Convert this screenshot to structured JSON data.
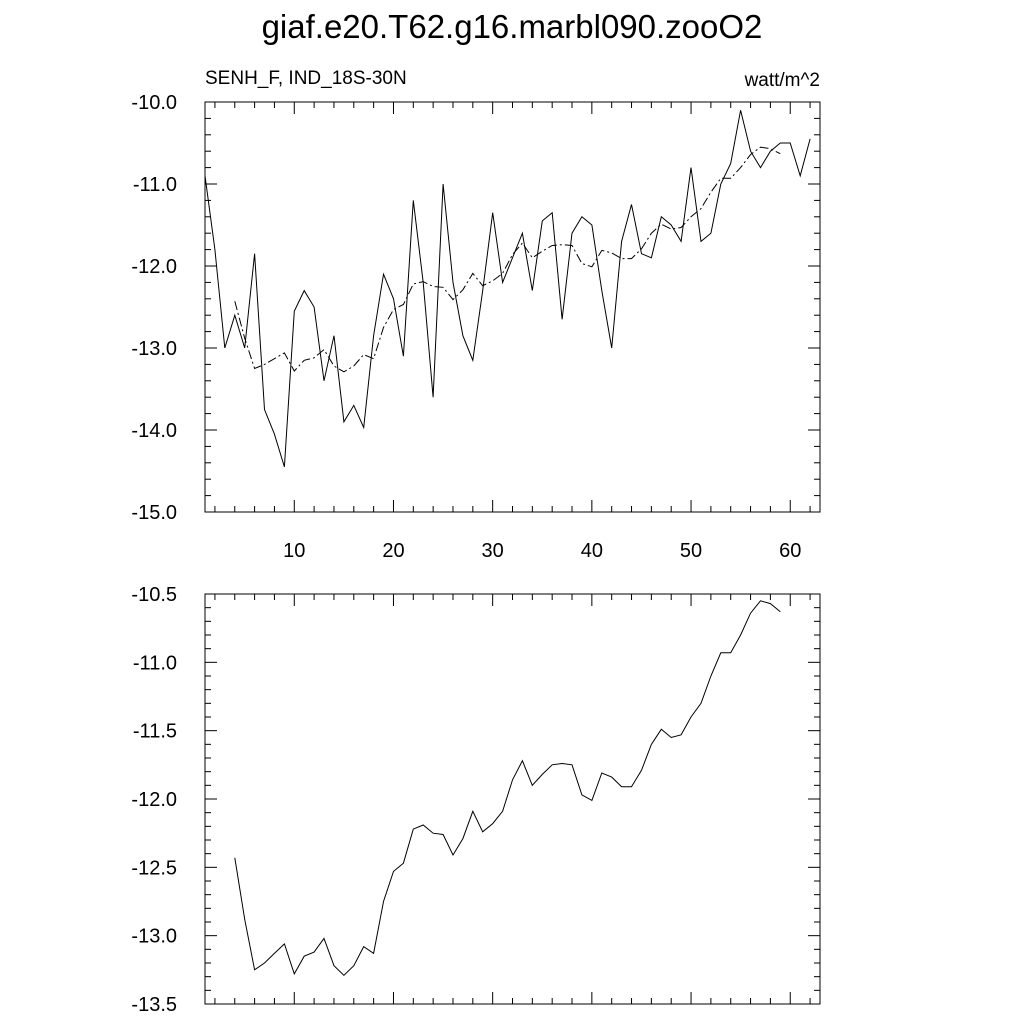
{
  "figure_title": "giaf.e20.T62.g16.marbl090.zooO2",
  "chart_data": [
    {
      "type": "line",
      "title": "giaf.e20.T62.g16.marbl090.zooO2",
      "left_label": "SENH_F, IND_18S-30N",
      "right_label": "watt/m^2",
      "xlim": [
        1,
        63
      ],
      "ylim": [
        -15.0,
        -10.0
      ],
      "x_ticks": [
        10,
        20,
        30,
        40,
        50,
        60
      ],
      "x_tick_labels": [
        "10",
        "20",
        "30",
        "40",
        "50",
        "60"
      ],
      "y_ticks": [
        -15.0,
        -14.0,
        -13.0,
        -12.0,
        -11.0,
        -10.0
      ],
      "y_tick_labels": [
        "-15.0",
        "-14.0",
        "-13.0",
        "-12.0",
        "-11.0",
        "-10.0"
      ],
      "grid": false,
      "series": [
        {
          "style": "solid",
          "x": [
            1,
            2,
            3,
            4,
            5,
            6,
            7,
            8,
            9,
            10,
            11,
            12,
            13,
            14,
            15,
            16,
            17,
            18,
            19,
            20,
            21,
            22,
            23,
            24,
            25,
            26,
            27,
            28,
            29,
            30,
            31,
            32,
            33,
            34,
            35,
            36,
            37,
            38,
            39,
            40,
            41,
            42,
            43,
            44,
            45,
            46,
            47,
            48,
            49,
            50,
            51,
            52,
            53,
            54,
            55,
            56,
            57,
            58,
            59,
            60,
            61,
            62
          ],
          "y": [
            -10.9,
            -11.8,
            -13.0,
            -12.6,
            -13.0,
            -11.85,
            -13.75,
            -14.05,
            -14.45,
            -12.55,
            -12.3,
            -12.5,
            -13.4,
            -12.85,
            -13.9,
            -13.7,
            -13.97,
            -12.85,
            -12.1,
            -12.4,
            -13.1,
            -11.2,
            -12.2,
            -13.6,
            -11.0,
            -12.2,
            -12.85,
            -13.15,
            -12.3,
            -11.35,
            -12.2,
            -11.9,
            -11.6,
            -12.3,
            -11.45,
            -11.35,
            -12.65,
            -11.6,
            -11.4,
            -11.5,
            -12.3,
            -13.0,
            -11.7,
            -11.25,
            -11.85,
            -11.9,
            -11.4,
            -11.5,
            -11.7,
            -10.8,
            -11.7,
            -11.6,
            -11.0,
            -10.75,
            -10.1,
            -10.6,
            -10.8,
            -10.6,
            -10.5,
            -10.5,
            -10.9,
            -10.45
          ]
        },
        {
          "style": "dash-dot",
          "x": [
            4,
            5,
            6,
            7,
            8,
            9,
            10,
            11,
            12,
            13,
            14,
            15,
            16,
            17,
            18,
            19,
            20,
            21,
            22,
            23,
            24,
            25,
            26,
            27,
            28,
            29,
            30,
            31,
            32,
            33,
            34,
            35,
            36,
            37,
            38,
            39,
            40,
            41,
            42,
            43,
            44,
            45,
            46,
            47,
            48,
            49,
            50,
            51,
            52,
            53,
            54,
            55,
            56,
            57,
            58,
            59
          ],
          "y": [
            -12.43,
            -12.88,
            -13.25,
            -13.2,
            -13.13,
            -13.06,
            -13.28,
            -13.15,
            -13.12,
            -13.02,
            -13.22,
            -13.29,
            -13.22,
            -13.08,
            -13.13,
            -12.75,
            -12.53,
            -12.47,
            -12.22,
            -12.19,
            -12.25,
            -12.26,
            -12.41,
            -12.29,
            -12.09,
            -12.24,
            -12.18,
            -12.09,
            -11.86,
            -11.72,
            -11.9,
            -11.82,
            -11.75,
            -11.74,
            -11.75,
            -11.97,
            -12.01,
            -11.81,
            -11.84,
            -11.91,
            -11.91,
            -11.79,
            -11.6,
            -11.49,
            -11.55,
            -11.53,
            -11.4,
            -11.3,
            -11.1,
            -10.93,
            -10.93,
            -10.8,
            -10.64,
            -10.55,
            -10.57,
            -10.63
          ]
        }
      ]
    },
    {
      "type": "line",
      "xlim": [
        1,
        63
      ],
      "ylim": [
        -13.5,
        -10.5
      ],
      "x_ticks": [
        10,
        20,
        30,
        40,
        50,
        60
      ],
      "x_tick_labels": [],
      "y_ticks": [
        -13.5,
        -13.0,
        -12.5,
        -12.0,
        -11.5,
        -11.0,
        -10.5
      ],
      "y_tick_labels": [
        "-13.5",
        "-13.0",
        "-12.5",
        "-12.0",
        "-11.5",
        "-11.0",
        "-10.5"
      ],
      "grid": false,
      "series": [
        {
          "style": "solid",
          "x": [
            4,
            5,
            6,
            7,
            8,
            9,
            10,
            11,
            12,
            13,
            14,
            15,
            16,
            17,
            18,
            19,
            20,
            21,
            22,
            23,
            24,
            25,
            26,
            27,
            28,
            29,
            30,
            31,
            32,
            33,
            34,
            35,
            36,
            37,
            38,
            39,
            40,
            41,
            42,
            43,
            44,
            45,
            46,
            47,
            48,
            49,
            50,
            51,
            52,
            53,
            54,
            55,
            56,
            57,
            58,
            59
          ],
          "y": [
            -12.43,
            -12.88,
            -13.25,
            -13.2,
            -13.13,
            -13.06,
            -13.28,
            -13.15,
            -13.12,
            -13.02,
            -13.22,
            -13.29,
            -13.22,
            -13.08,
            -13.13,
            -12.75,
            -12.53,
            -12.47,
            -12.22,
            -12.19,
            -12.25,
            -12.26,
            -12.41,
            -12.29,
            -12.09,
            -12.24,
            -12.18,
            -12.09,
            -11.86,
            -11.72,
            -11.9,
            -11.82,
            -11.75,
            -11.74,
            -11.75,
            -11.97,
            -12.01,
            -11.81,
            -11.84,
            -11.91,
            -11.91,
            -11.79,
            -11.6,
            -11.49,
            -11.55,
            -11.53,
            -11.4,
            -11.3,
            -11.1,
            -10.93,
            -10.93,
            -10.8,
            -10.64,
            -10.55,
            -10.57,
            -10.63
          ]
        }
      ]
    }
  ]
}
